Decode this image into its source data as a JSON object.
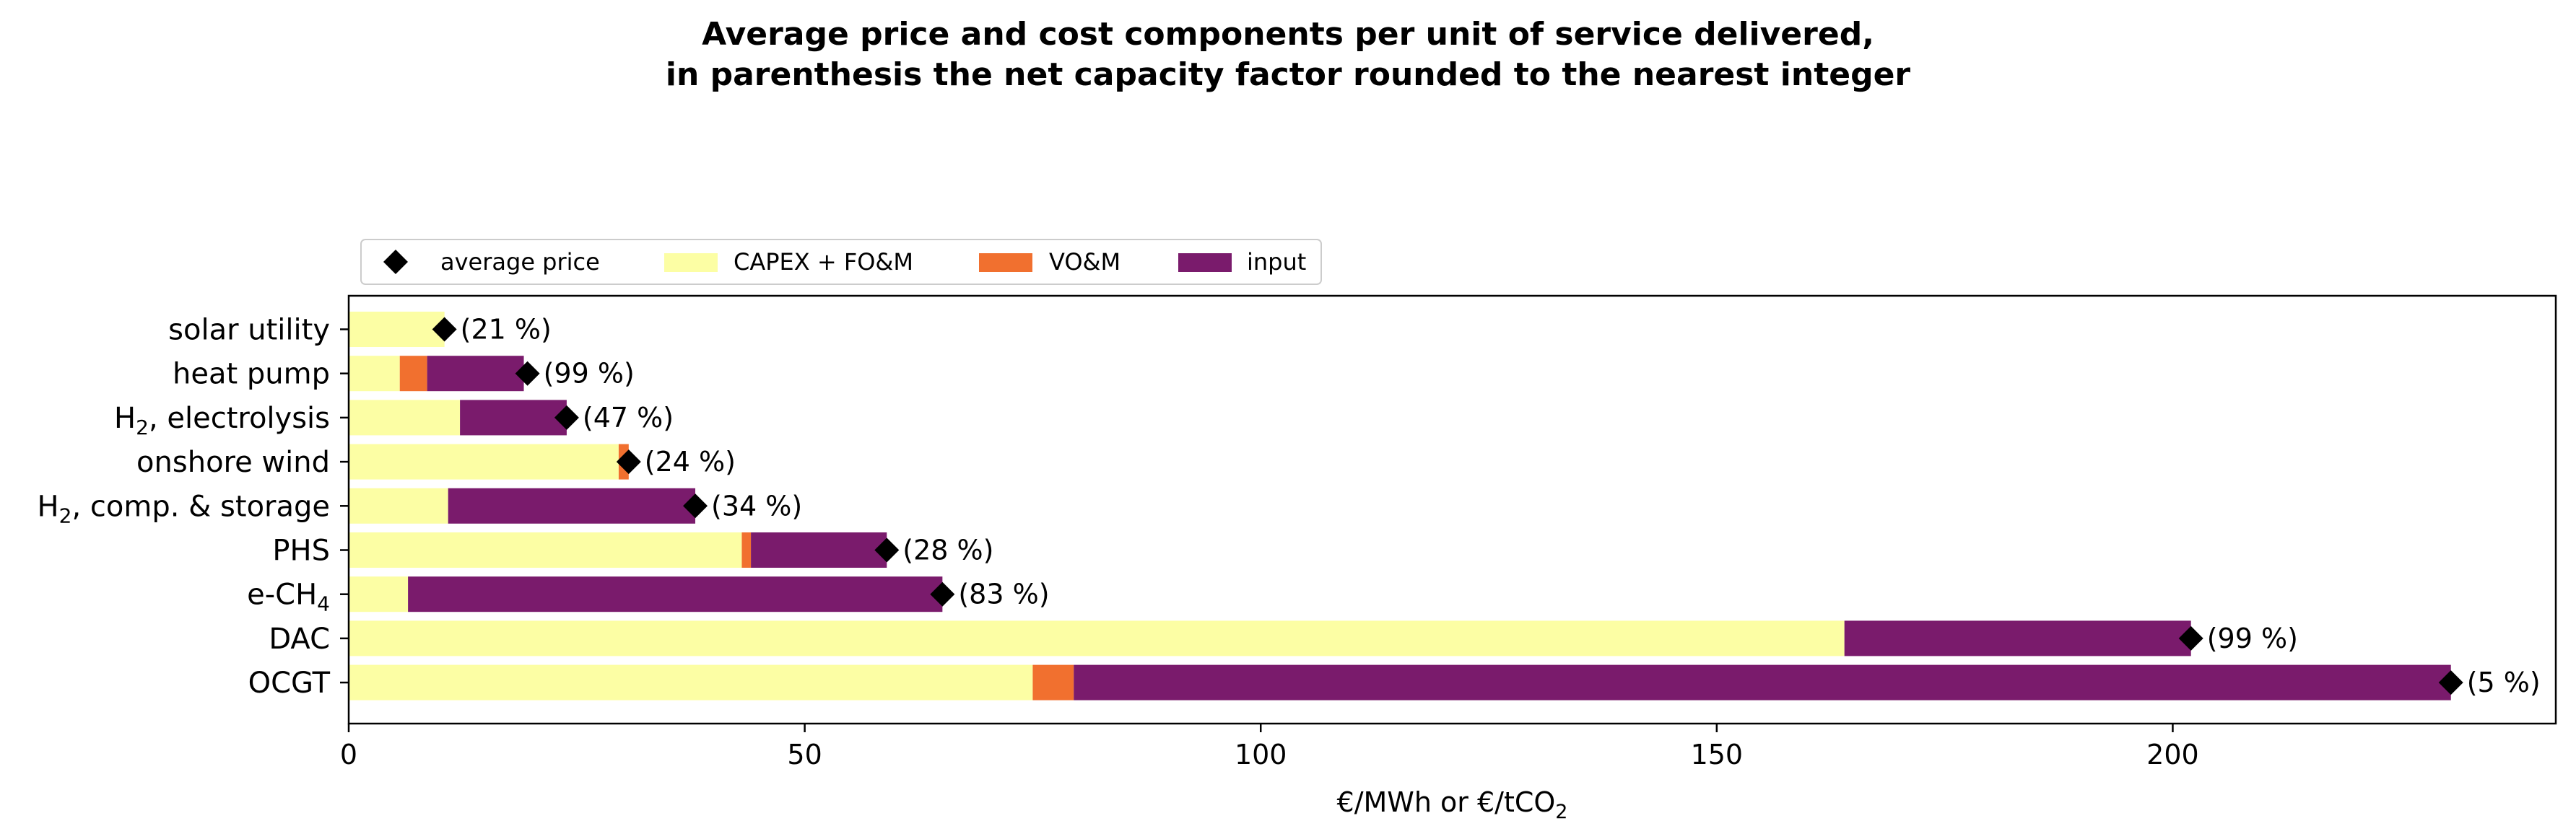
{
  "chart_data": {
    "type": "bar",
    "orientation": "horizontal",
    "stacked": true,
    "title_lines": [
      "Average price and cost components per unit of service delivered,",
      "in parenthesis the net capacity factor rounded to the nearest integer"
    ],
    "xlabel": {
      "base": "€/MWh or €/tCO",
      "sub": "2"
    },
    "ylabel": "",
    "xlim": [
      0,
      242
    ],
    "xticks": [
      0,
      50,
      100,
      150,
      200
    ],
    "grid": false,
    "legend_position": "top-left, above plot",
    "categories": [
      {
        "label": "solar utility",
        "base": "solar utility",
        "sub": "",
        "after": ""
      },
      {
        "label": "heat pump",
        "base": "heat pump",
        "sub": "",
        "after": ""
      },
      {
        "label": "H2, electrolysis",
        "base": "H",
        "sub": "2",
        "after": ", electrolysis"
      },
      {
        "label": "onshore wind",
        "base": "onshore wind",
        "sub": "",
        "after": ""
      },
      {
        "label": "H2, comp. & storage",
        "base": "H",
        "sub": "2",
        "after": ", comp. & storage"
      },
      {
        "label": "PHS",
        "base": "PHS",
        "sub": "",
        "after": ""
      },
      {
        "label": "e-CH4",
        "base": "e-CH",
        "sub": "4",
        "after": ""
      },
      {
        "label": "DAC",
        "base": "DAC",
        "sub": "",
        "after": ""
      },
      {
        "label": "OCGT",
        "base": "OCGT",
        "sub": "",
        "after": ""
      }
    ],
    "series": [
      {
        "name": "CAPEX + FO&M",
        "color": "#fcfea4",
        "values": [
          10.5,
          5.6,
          12.2,
          29.6,
          10.9,
          43.1,
          6.5,
          164.0,
          75.0
        ]
      },
      {
        "name": "VO&M",
        "color": "#f1702f",
        "values": [
          0.0,
          3.0,
          0.0,
          1.1,
          0.0,
          1.0,
          0.0,
          0.0,
          4.5
        ]
      },
      {
        "name": "input",
        "color": "#7a1b6c",
        "values": [
          0.0,
          10.6,
          11.7,
          0.0,
          27.1,
          14.9,
          58.6,
          38.0,
          151.0
        ]
      }
    ],
    "average_price": {
      "name": "average price",
      "marker": "diamond",
      "color": "#000000",
      "values": [
        10.5,
        19.6,
        23.9,
        30.7,
        38.0,
        59.0,
        65.1,
        202.0,
        230.5
      ]
    },
    "capacity_factor_labels": [
      "(21 %)",
      "(99 %)",
      "(47 %)",
      "(24 %)",
      "(34 %)",
      "(28 %)",
      "(83 %)",
      "(99 %)",
      "(5 %)"
    ]
  }
}
